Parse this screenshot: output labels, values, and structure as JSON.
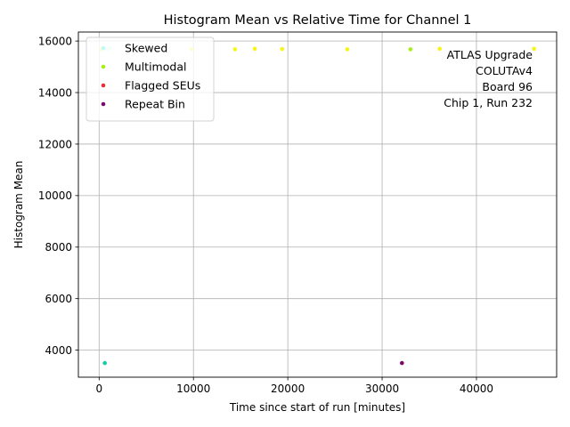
{
  "chart_data": {
    "type": "scatter",
    "title": "Histogram Mean vs Relative Time for Channel 1",
    "xlabel": "Time since start of run [minutes]",
    "ylabel": "Histogram Mean",
    "xlim": [
      -2200,
      48500
    ],
    "ylim": [
      2950,
      16350
    ],
    "xticks": [
      0,
      10000,
      20000,
      30000,
      40000
    ],
    "yticks": [
      4000,
      6000,
      8000,
      10000,
      12000,
      14000,
      16000
    ],
    "grid": true,
    "legend_position": "top-left",
    "legend": [
      {
        "name": "Skewed",
        "color": "#c6f7f4"
      },
      {
        "name": "Multimodal",
        "color": "#a6f01a"
      },
      {
        "name": "Flagged SEUs",
        "color": "#e8303a"
      },
      {
        "name": "Repeat Bin",
        "color": "#7a0a6e"
      }
    ],
    "annotation": [
      "ATLAS Upgrade",
      "COLUTAv4",
      "Board 96",
      "Chip 1, Run 232"
    ],
    "points": [
      {
        "x": 200,
        "y": 15680,
        "color": "#f5f518"
      },
      {
        "x": 400,
        "y": 15700,
        "color": "#c6f7f4"
      },
      {
        "x": 700,
        "y": 15690,
        "color": "#c6f7f4"
      },
      {
        "x": 1000,
        "y": 15700,
        "color": "#c6f7f4"
      },
      {
        "x": 9800,
        "y": 15690,
        "color": "#f5f518"
      },
      {
        "x": 14400,
        "y": 15680,
        "color": "#f5f518"
      },
      {
        "x": 16500,
        "y": 15700,
        "color": "#f5f518"
      },
      {
        "x": 19400,
        "y": 15690,
        "color": "#f5f518"
      },
      {
        "x": 26300,
        "y": 15680,
        "color": "#f5f518"
      },
      {
        "x": 33000,
        "y": 15680,
        "color": "#a6f01a"
      },
      {
        "x": 36100,
        "y": 15700,
        "color": "#f5f518"
      },
      {
        "x": 46100,
        "y": 15700,
        "color": "#f5f518"
      },
      {
        "x": 600,
        "y": 3500,
        "color": "#1ac9a8"
      },
      {
        "x": 32100,
        "y": 3500,
        "color": "#7a0a6e"
      }
    ]
  }
}
